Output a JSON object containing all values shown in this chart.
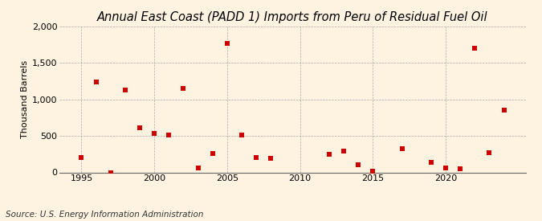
{
  "title": "Annual East Coast (PADD 1) Imports from Peru of Residual Fuel Oil",
  "ylabel": "Thousand Barrels",
  "source": "Source: U.S. Energy Information Administration",
  "background_color": "#fdf3e0",
  "data": [
    {
      "year": 1995,
      "value": 200
    },
    {
      "year": 1996,
      "value": 1240
    },
    {
      "year": 1997,
      "value": -10
    },
    {
      "year": 1998,
      "value": 1130
    },
    {
      "year": 1999,
      "value": 610
    },
    {
      "year": 2000,
      "value": 530
    },
    {
      "year": 2001,
      "value": 510
    },
    {
      "year": 2002,
      "value": 1150
    },
    {
      "year": 2003,
      "value": 60
    },
    {
      "year": 2004,
      "value": 260
    },
    {
      "year": 2005,
      "value": 1770
    },
    {
      "year": 2006,
      "value": 510
    },
    {
      "year": 2007,
      "value": 200
    },
    {
      "year": 2008,
      "value": 190
    },
    {
      "year": 2012,
      "value": 250
    },
    {
      "year": 2013,
      "value": 290
    },
    {
      "year": 2014,
      "value": 110
    },
    {
      "year": 2015,
      "value": 20
    },
    {
      "year": 2017,
      "value": 330
    },
    {
      "year": 2019,
      "value": 140
    },
    {
      "year": 2020,
      "value": 60
    },
    {
      "year": 2021,
      "value": 45
    },
    {
      "year": 2022,
      "value": 1700
    },
    {
      "year": 2023,
      "value": 270
    },
    {
      "year": 2024,
      "value": 850
    }
  ],
  "xlim": [
    1993.5,
    2025.5
  ],
  "ylim": [
    0,
    2000
  ],
  "yticks": [
    0,
    500,
    1000,
    1500,
    2000
  ],
  "xticks": [
    1995,
    2000,
    2005,
    2010,
    2015,
    2020
  ],
  "marker_color": "#cc0000",
  "marker_size": 18,
  "grid_color": "#999999",
  "title_fontsize": 10.5,
  "axis_fontsize": 8,
  "source_fontsize": 7.5
}
